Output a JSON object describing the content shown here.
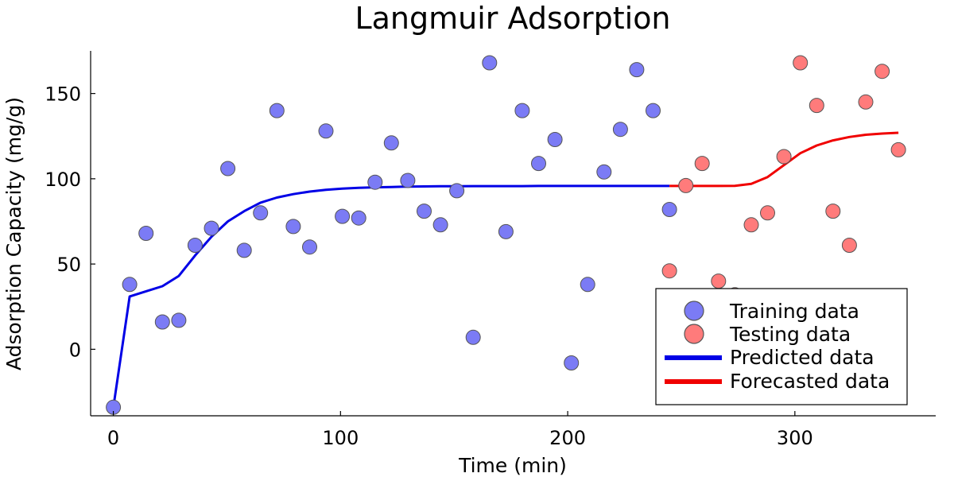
{
  "chart_data": {
    "type": "scatter",
    "title": "Langmuir Adsorption",
    "xlabel": "Time (min)",
    "ylabel": "Adsorption Capacity (mg/g)",
    "xlim": [
      -10,
      362
    ],
    "ylim": [
      -39,
      175
    ],
    "xticks": [
      0,
      100,
      200,
      300
    ],
    "yticks": [
      0,
      50,
      100,
      150
    ],
    "grid": false,
    "legend_position": "bottom-right",
    "series": [
      {
        "name": "Training data",
        "kind": "scatter",
        "color": "#7b7bf5",
        "x": [
          0,
          7.2,
          14.4,
          21.6,
          28.8,
          36,
          43.2,
          50.4,
          57.6,
          64.8,
          72,
          79.2,
          86.4,
          93.6,
          100.8,
          108,
          115.2,
          122.4,
          129.6,
          136.8,
          144,
          151.2,
          158.4,
          165.6,
          172.8,
          180,
          187.2,
          194.4,
          201.6,
          208.8,
          216,
          223.2,
          230.4,
          237.6,
          244.8
        ],
        "y": [
          -34,
          38,
          68,
          16,
          17,
          61,
          71,
          106,
          58,
          80,
          140,
          72,
          60,
          128,
          78,
          77,
          98,
          121,
          99,
          81,
          73,
          93,
          7,
          168,
          69,
          140,
          109,
          123,
          -8,
          38,
          104,
          129,
          164,
          140,
          82
        ]
      },
      {
        "name": "Testing data",
        "kind": "scatter",
        "color": "#ff7b7b",
        "x": [
          244.8,
          252,
          259.2,
          266.4,
          273.6,
          280.8,
          288,
          295.2,
          302.4,
          309.6,
          316.8,
          324,
          331.2,
          338.4,
          345.6
        ],
        "y": [
          46,
          96,
          109,
          40,
          32,
          73,
          80,
          113,
          168,
          143,
          81,
          61,
          145,
          163,
          117
        ]
      },
      {
        "name": "Predicted data",
        "kind": "line",
        "color": "#0000e6",
        "x": [
          0,
          7.2,
          14.4,
          21.6,
          28.8,
          36,
          43.2,
          50.4,
          57.6,
          64.8,
          72,
          79.2,
          86.4,
          93.6,
          100.8,
          108,
          115.2,
          122.4,
          129.6,
          136.8,
          144,
          151.2,
          158.4,
          165.6,
          172.8,
          180,
          187.2,
          194.4,
          201.6,
          208.8,
          216,
          223.2,
          230.4,
          237.6,
          244.8
        ],
        "y": [
          -34,
          31,
          34,
          37,
          43,
          55,
          66,
          75,
          81,
          86,
          89,
          91,
          92.5,
          93.5,
          94.2,
          94.7,
          95,
          95.2,
          95.4,
          95.5,
          95.6,
          95.6,
          95.7,
          95.7,
          95.7,
          95.7,
          95.8,
          95.8,
          95.8,
          95.8,
          95.8,
          95.8,
          95.8,
          95.8,
          95.8
        ]
      },
      {
        "name": "Forecasted data",
        "kind": "line",
        "color": "#f00000",
        "x": [
          244.8,
          252,
          259.2,
          266.4,
          273.6,
          280.8,
          288,
          295.2,
          302.4,
          309.6,
          316.8,
          324,
          331.2,
          338.4,
          345.6
        ],
        "y": [
          95.8,
          95.8,
          95.8,
          95.8,
          95.9,
          97,
          101,
          108,
          115,
          119.5,
          122.5,
          124.5,
          125.8,
          126.5,
          127
        ]
      }
    ]
  }
}
